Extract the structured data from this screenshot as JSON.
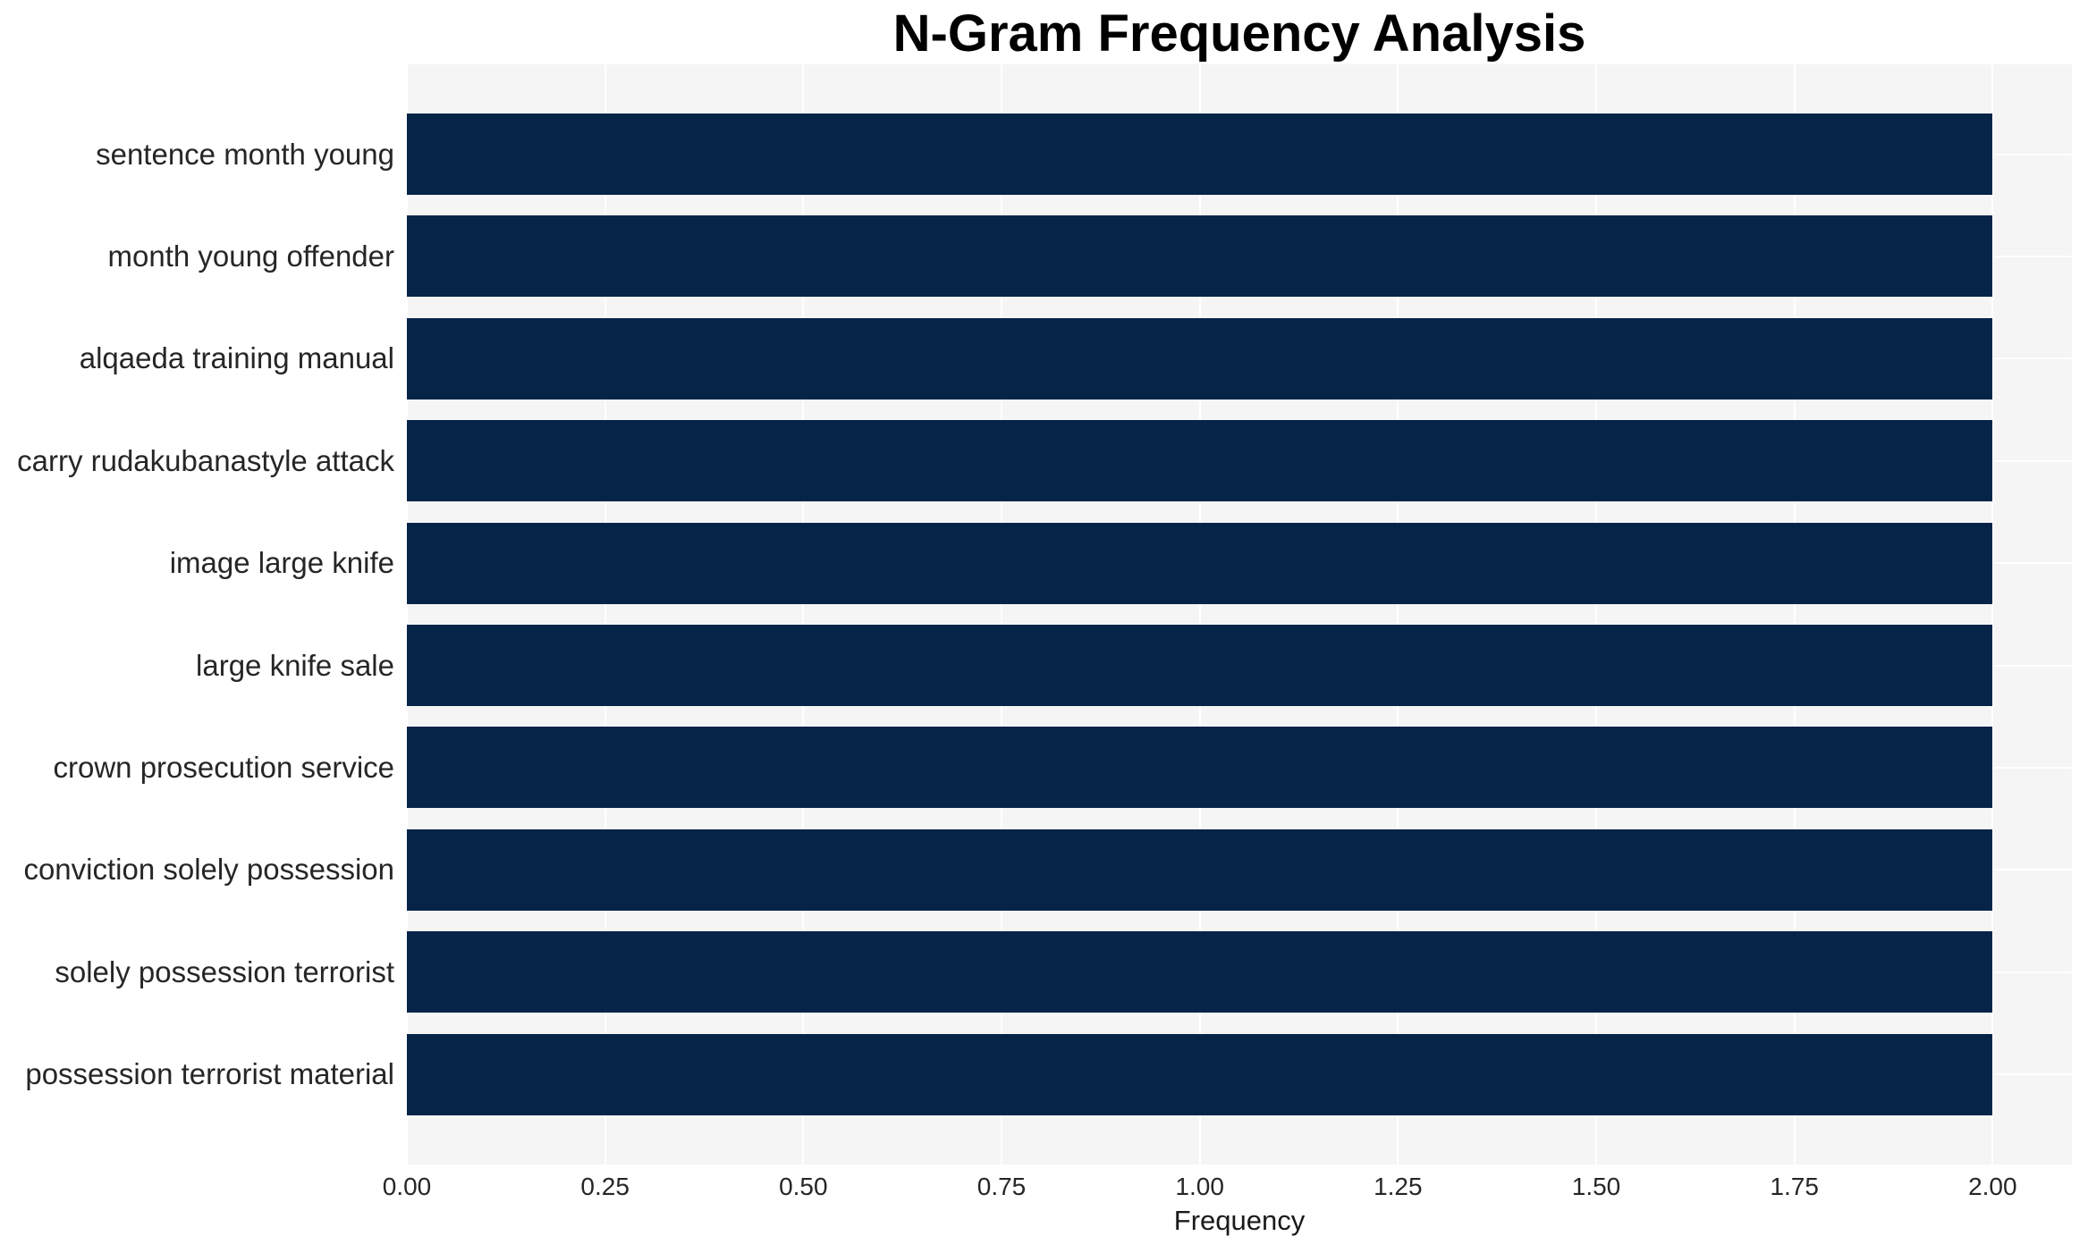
{
  "chart_data": {
    "type": "bar",
    "orientation": "horizontal",
    "title": "N-Gram Frequency Analysis",
    "xlabel": "Frequency",
    "ylabel": "",
    "categories": [
      "sentence month young",
      "month young offender",
      "alqaeda training manual",
      "carry rudakubanastyle attack",
      "image large knife",
      "large knife sale",
      "crown prosecution service",
      "conviction solely possession",
      "solely possession terrorist",
      "possession terrorist material"
    ],
    "values": [
      2,
      2,
      2,
      2,
      2,
      2,
      2,
      2,
      2,
      2
    ],
    "xlim": [
      0,
      2.1
    ],
    "xticks": [
      0,
      0.25,
      0.5,
      0.75,
      1.0,
      1.25,
      1.5,
      1.75,
      2.0
    ],
    "xtick_labels": [
      "0.00",
      "0.25",
      "0.50",
      "0.75",
      "1.00",
      "1.25",
      "1.50",
      "1.75",
      "2.00"
    ],
    "grid": true,
    "legend": false,
    "colors": {
      "bar": "#052448",
      "plot_background": "#f5f5f6",
      "gridline": "#ffffff",
      "tick_label": "#262626",
      "title": "#000000"
    }
  }
}
